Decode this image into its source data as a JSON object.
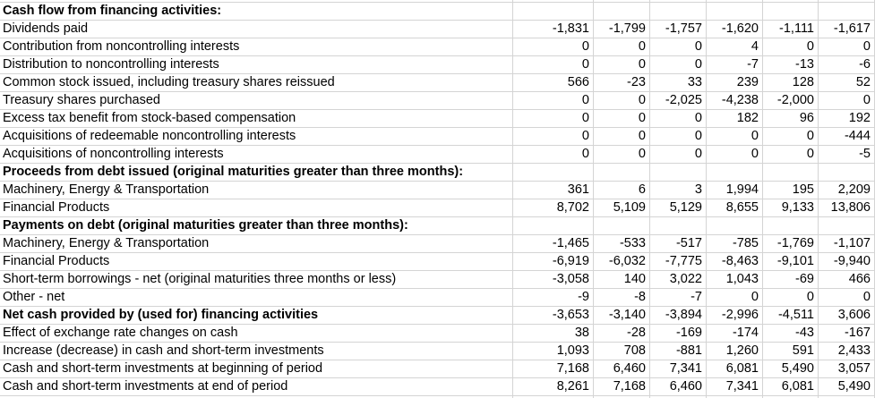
{
  "colors": {
    "background": "#ffffff",
    "gridline": "#d4d4d4",
    "text": "#000000"
  },
  "table": {
    "num_value_columns": 6,
    "rows": [
      {
        "label": "Cash flow from financing activities:",
        "bold": true,
        "values": [
          "",
          "",
          "",
          "",
          "",
          ""
        ]
      },
      {
        "label": "Dividends paid",
        "bold": false,
        "values": [
          "-1,831",
          "-1,799",
          "-1,757",
          "-1,620",
          "-1,111",
          "-1,617"
        ]
      },
      {
        "label": "Contribution from noncontrolling interests",
        "bold": false,
        "values": [
          "0",
          "0",
          "0",
          "4",
          "0",
          "0"
        ]
      },
      {
        "label": "Distribution to noncontrolling interests",
        "bold": false,
        "values": [
          "0",
          "0",
          "0",
          "-7",
          "-13",
          "-6"
        ]
      },
      {
        "label": "Common stock issued, including treasury shares reissued",
        "bold": false,
        "values": [
          "566",
          "-23",
          "33",
          "239",
          "128",
          "52"
        ]
      },
      {
        "label": "Treasury shares purchased",
        "bold": false,
        "values": [
          "0",
          "0",
          "-2,025",
          "-4,238",
          "-2,000",
          "0"
        ]
      },
      {
        "label": "Excess tax benefit from stock-based compensation",
        "bold": false,
        "values": [
          "0",
          "0",
          "0",
          "182",
          "96",
          "192"
        ]
      },
      {
        "label": "Acquisitions of redeemable noncontrolling interests",
        "bold": false,
        "values": [
          "0",
          "0",
          "0",
          "0",
          "0",
          "-444"
        ]
      },
      {
        "label": "Acquisitions of noncontrolling interests",
        "bold": false,
        "values": [
          "0",
          "0",
          "0",
          "0",
          "0",
          "-5"
        ]
      },
      {
        "label": "Proceeds from debt issued (original maturities greater than three months):",
        "bold": true,
        "values": [
          "",
          "",
          "",
          "",
          "",
          ""
        ]
      },
      {
        "label": "Machinery, Energy & Transportation",
        "bold": false,
        "values": [
          "361",
          "6",
          "3",
          "1,994",
          "195",
          "2,209"
        ]
      },
      {
        "label": "Financial Products",
        "bold": false,
        "values": [
          "8,702",
          "5,109",
          "5,129",
          "8,655",
          "9,133",
          "13,806"
        ]
      },
      {
        "label": "Payments on debt (original maturities greater than three months):",
        "bold": true,
        "values": [
          "",
          "",
          "",
          "",
          "",
          ""
        ]
      },
      {
        "label": "Machinery, Energy & Transportation",
        "bold": false,
        "values": [
          "-1,465",
          "-533",
          "-517",
          "-785",
          "-1,769",
          "-1,107"
        ]
      },
      {
        "label": "Financial Products",
        "bold": false,
        "values": [
          "-6,919",
          "-6,032",
          "-7,775",
          "-8,463",
          "-9,101",
          "-9,940"
        ]
      },
      {
        "label": "Short-term borrowings - net (original maturities three months or less)",
        "bold": false,
        "values": [
          "-3,058",
          "140",
          "3,022",
          "1,043",
          "-69",
          "466"
        ]
      },
      {
        "label": "Other - net",
        "bold": false,
        "values": [
          "-9",
          "-8",
          "-7",
          "0",
          "0",
          "0"
        ]
      },
      {
        "label": "Net cash provided by (used for) financing activities",
        "bold": true,
        "values": [
          "-3,653",
          "-3,140",
          "-3,894",
          "-2,996",
          "-4,511",
          "3,606"
        ]
      },
      {
        "label": "Effect of exchange rate changes on cash",
        "bold": false,
        "values": [
          "38",
          "-28",
          "-169",
          "-174",
          "-43",
          "-167"
        ]
      },
      {
        "label": "Increase (decrease) in cash and short-term investments",
        "bold": false,
        "values": [
          "1,093",
          "708",
          "-881",
          "1,260",
          "591",
          "2,433"
        ]
      },
      {
        "label": "Cash and short-term investments at beginning of period",
        "bold": false,
        "values": [
          "7,168",
          "6,460",
          "7,341",
          "6,081",
          "5,490",
          "3,057"
        ]
      },
      {
        "label": "Cash and short-term investments at end of period",
        "bold": false,
        "values": [
          "8,261",
          "7,168",
          "6,460",
          "7,341",
          "6,081",
          "5,490"
        ]
      }
    ]
  }
}
